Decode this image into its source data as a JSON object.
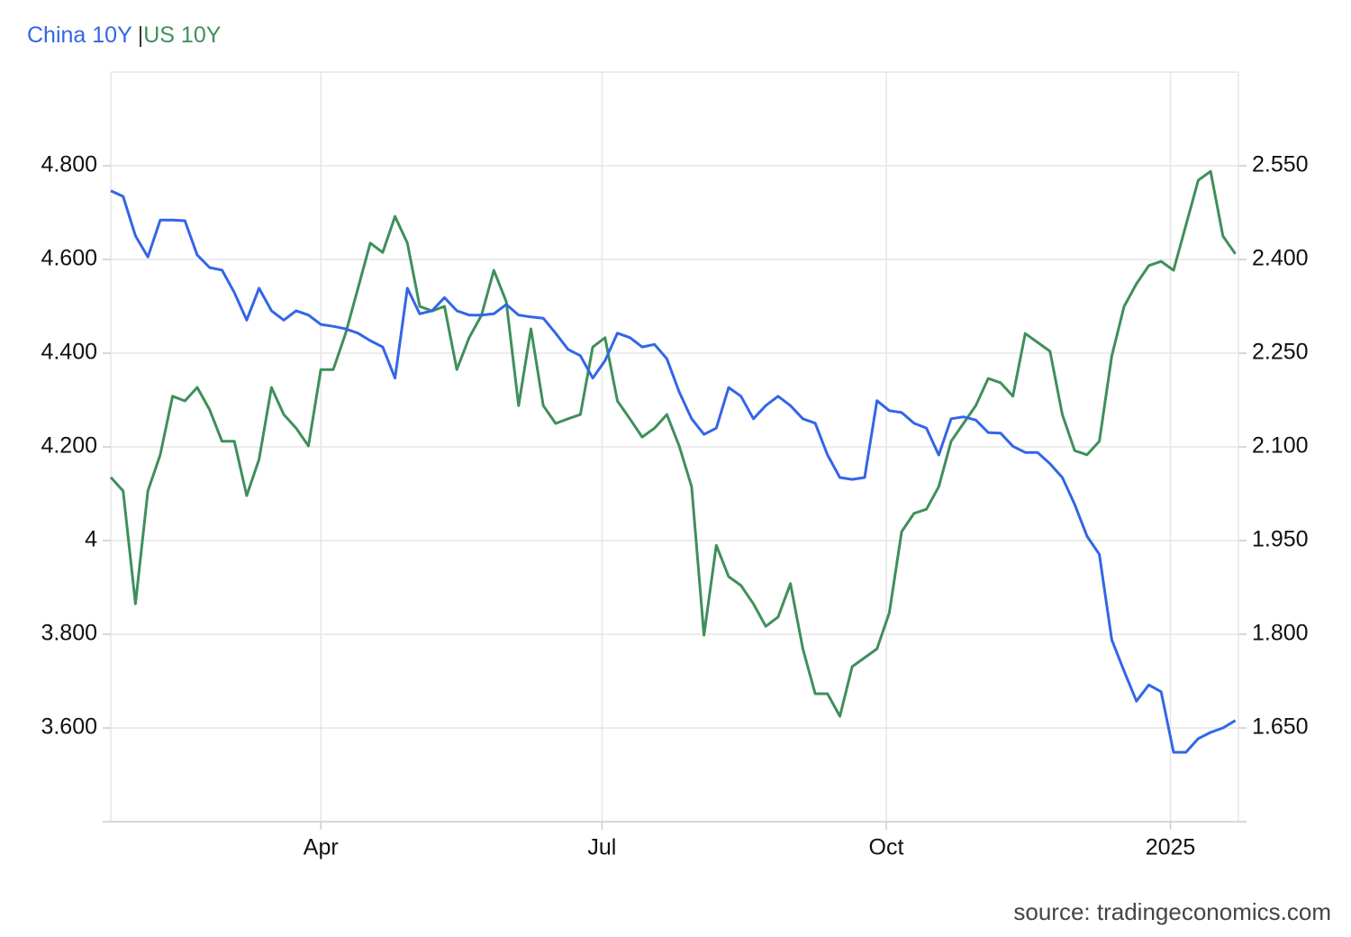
{
  "chart_data": {
    "type": "line",
    "legend_separator": "|",
    "source": "source: tradingeconomics.com",
    "x": [
      0,
      4,
      8,
      12,
      16,
      20,
      24,
      28,
      32,
      36,
      40,
      44,
      48,
      52,
      56,
      60,
      64,
      68,
      72,
      76,
      80,
      84,
      88,
      92,
      96,
      100,
      104,
      108,
      112,
      116,
      120,
      124,
      128,
      132,
      136,
      140,
      144,
      148,
      152,
      156,
      160,
      164,
      168,
      172,
      176,
      180,
      184,
      188,
      192,
      196,
      200,
      204,
      208,
      212,
      216,
      220,
      224,
      228,
      232,
      236,
      240,
      244,
      248,
      252,
      256,
      260,
      264,
      268,
      272,
      276,
      280,
      284,
      288,
      292,
      296,
      300,
      304,
      308,
      312,
      316,
      320,
      324,
      328,
      332,
      336,
      340,
      344,
      348,
      352,
      356,
      360,
      364
    ],
    "xlim": [
      0,
      365
    ],
    "xticks": [
      {
        "value": 68,
        "label": "Apr"
      },
      {
        "value": 159,
        "label": "Jul"
      },
      {
        "value": 251,
        "label": "Oct"
      },
      {
        "value": 343,
        "label": "2025"
      }
    ],
    "ylim": [
      3.4,
      5.0
    ],
    "yticks": [
      {
        "value": 3.6,
        "label": "3.600"
      },
      {
        "value": 3.8,
        "label": "3.800"
      },
      4,
      {
        "value": 4.2,
        "label": "4.200"
      },
      {
        "value": 4.4,
        "label": "4.400"
      },
      {
        "value": 4.6,
        "label": "4.600"
      },
      {
        "value": 4.8,
        "label": "4.800"
      }
    ],
    "y2lim": [
      1.5,
      2.7
    ],
    "y2ticks": [
      {
        "value": 1.65,
        "label": "1.650"
      },
      {
        "value": 1.8,
        "label": "1.800"
      },
      {
        "value": 1.95,
        "label": "1.950"
      },
      {
        "value": 2.1,
        "label": "2.100"
      },
      {
        "value": 2.25,
        "label": "2.250"
      },
      {
        "value": 2.4,
        "label": "2.400"
      },
      {
        "value": 2.55,
        "label": "2.550"
      }
    ],
    "grid": true,
    "series": [
      {
        "name": "China 10Y",
        "color": "#3366e6",
        "axis": "y2",
        "values": [
          2.51,
          2.501,
          2.438,
          2.404,
          2.463,
          2.463,
          2.462,
          2.407,
          2.387,
          2.383,
          2.347,
          2.303,
          2.354,
          2.318,
          2.303,
          2.318,
          2.311,
          2.296,
          2.293,
          2.289,
          2.282,
          2.27,
          2.26,
          2.21,
          2.354,
          2.313,
          2.318,
          2.339,
          2.318,
          2.311,
          2.311,
          2.313,
          2.328,
          2.311,
          2.308,
          2.306,
          2.282,
          2.256,
          2.246,
          2.21,
          2.238,
          2.282,
          2.275,
          2.26,
          2.264,
          2.241,
          2.188,
          2.145,
          2.12,
          2.13,
          2.195,
          2.181,
          2.145,
          2.166,
          2.181,
          2.166,
          2.145,
          2.138,
          2.087,
          2.051,
          2.048,
          2.051,
          2.174,
          2.158,
          2.155,
          2.138,
          2.13,
          2.087,
          2.145,
          2.148,
          2.143,
          2.123,
          2.122,
          2.101,
          2.091,
          2.091,
          2.073,
          2.051,
          2.008,
          1.957,
          1.928,
          1.791,
          1.741,
          1.693,
          1.719,
          1.708,
          1.611,
          1.611,
          1.633,
          1.643,
          1.65,
          1.662
        ]
      },
      {
        "name": "US 10Y",
        "color": "#3f8f5b",
        "values": [
          4.135,
          4.106,
          3.865,
          4.106,
          4.183,
          4.308,
          4.298,
          4.327,
          4.279,
          4.212,
          4.212,
          4.096,
          4.173,
          4.327,
          4.269,
          4.24,
          4.202,
          4.365,
          4.365,
          4.442,
          4.538,
          4.635,
          4.615,
          4.692,
          4.635,
          4.5,
          4.49,
          4.5,
          4.365,
          4.433,
          4.481,
          4.577,
          4.51,
          4.288,
          4.452,
          4.288,
          4.25,
          4.26,
          4.269,
          4.413,
          4.433,
          4.298,
          4.26,
          4.221,
          4.24,
          4.269,
          4.202,
          4.115,
          3.798,
          3.99,
          3.923,
          3.904,
          3.865,
          3.817,
          3.837,
          3.908,
          3.769,
          3.673,
          3.673,
          3.625,
          3.731,
          3.75,
          3.769,
          3.846,
          4.019,
          4.058,
          4.067,
          4.115,
          4.212,
          4.25,
          4.288,
          4.346,
          4.337,
          4.308,
          4.442,
          4.423,
          4.404,
          4.269,
          4.192,
          4.183,
          4.212,
          4.394,
          4.5,
          4.548,
          4.587,
          4.596,
          4.577,
          4.673,
          4.769,
          4.788,
          4.65,
          4.612
        ]
      }
    ]
  }
}
